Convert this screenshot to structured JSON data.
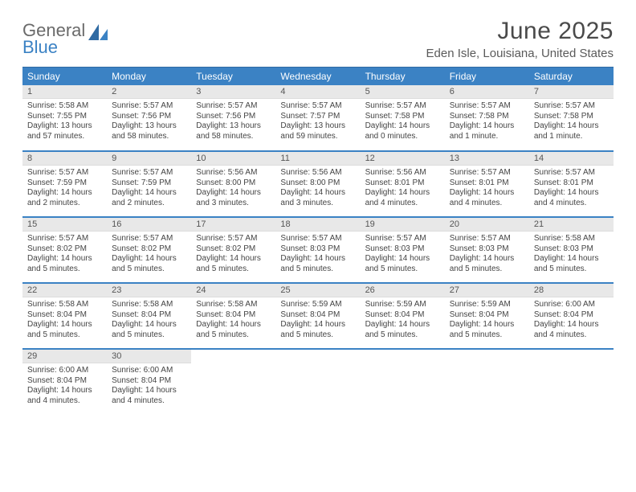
{
  "brand": {
    "line1": "General",
    "line2": "Blue"
  },
  "title": "June 2025",
  "location": "Eden Isle, Louisiana, United States",
  "colors": {
    "header_bg": "#3b82c4",
    "header_text": "#ffffff",
    "daynum_bg": "#e8e8e8",
    "row_divider": "#3b82c4",
    "body_text": "#444444",
    "title_text": "#4a4a4a"
  },
  "weekdays": [
    "Sunday",
    "Monday",
    "Tuesday",
    "Wednesday",
    "Thursday",
    "Friday",
    "Saturday"
  ],
  "days": [
    {
      "n": "1",
      "sunrise": "5:58 AM",
      "sunset": "7:55 PM",
      "daylight": "13 hours and 57 minutes."
    },
    {
      "n": "2",
      "sunrise": "5:57 AM",
      "sunset": "7:56 PM",
      "daylight": "13 hours and 58 minutes."
    },
    {
      "n": "3",
      "sunrise": "5:57 AM",
      "sunset": "7:56 PM",
      "daylight": "13 hours and 58 minutes."
    },
    {
      "n": "4",
      "sunrise": "5:57 AM",
      "sunset": "7:57 PM",
      "daylight": "13 hours and 59 minutes."
    },
    {
      "n": "5",
      "sunrise": "5:57 AM",
      "sunset": "7:58 PM",
      "daylight": "14 hours and 0 minutes."
    },
    {
      "n": "6",
      "sunrise": "5:57 AM",
      "sunset": "7:58 PM",
      "daylight": "14 hours and 1 minute."
    },
    {
      "n": "7",
      "sunrise": "5:57 AM",
      "sunset": "7:58 PM",
      "daylight": "14 hours and 1 minute."
    },
    {
      "n": "8",
      "sunrise": "5:57 AM",
      "sunset": "7:59 PM",
      "daylight": "14 hours and 2 minutes."
    },
    {
      "n": "9",
      "sunrise": "5:57 AM",
      "sunset": "7:59 PM",
      "daylight": "14 hours and 2 minutes."
    },
    {
      "n": "10",
      "sunrise": "5:56 AM",
      "sunset": "8:00 PM",
      "daylight": "14 hours and 3 minutes."
    },
    {
      "n": "11",
      "sunrise": "5:56 AM",
      "sunset": "8:00 PM",
      "daylight": "14 hours and 3 minutes."
    },
    {
      "n": "12",
      "sunrise": "5:56 AM",
      "sunset": "8:01 PM",
      "daylight": "14 hours and 4 minutes."
    },
    {
      "n": "13",
      "sunrise": "5:57 AM",
      "sunset": "8:01 PM",
      "daylight": "14 hours and 4 minutes."
    },
    {
      "n": "14",
      "sunrise": "5:57 AM",
      "sunset": "8:01 PM",
      "daylight": "14 hours and 4 minutes."
    },
    {
      "n": "15",
      "sunrise": "5:57 AM",
      "sunset": "8:02 PM",
      "daylight": "14 hours and 5 minutes."
    },
    {
      "n": "16",
      "sunrise": "5:57 AM",
      "sunset": "8:02 PM",
      "daylight": "14 hours and 5 minutes."
    },
    {
      "n": "17",
      "sunrise": "5:57 AM",
      "sunset": "8:02 PM",
      "daylight": "14 hours and 5 minutes."
    },
    {
      "n": "18",
      "sunrise": "5:57 AM",
      "sunset": "8:03 PM",
      "daylight": "14 hours and 5 minutes."
    },
    {
      "n": "19",
      "sunrise": "5:57 AM",
      "sunset": "8:03 PM",
      "daylight": "14 hours and 5 minutes."
    },
    {
      "n": "20",
      "sunrise": "5:57 AM",
      "sunset": "8:03 PM",
      "daylight": "14 hours and 5 minutes."
    },
    {
      "n": "21",
      "sunrise": "5:58 AM",
      "sunset": "8:03 PM",
      "daylight": "14 hours and 5 minutes."
    },
    {
      "n": "22",
      "sunrise": "5:58 AM",
      "sunset": "8:04 PM",
      "daylight": "14 hours and 5 minutes."
    },
    {
      "n": "23",
      "sunrise": "5:58 AM",
      "sunset": "8:04 PM",
      "daylight": "14 hours and 5 minutes."
    },
    {
      "n": "24",
      "sunrise": "5:58 AM",
      "sunset": "8:04 PM",
      "daylight": "14 hours and 5 minutes."
    },
    {
      "n": "25",
      "sunrise": "5:59 AM",
      "sunset": "8:04 PM",
      "daylight": "14 hours and 5 minutes."
    },
    {
      "n": "26",
      "sunrise": "5:59 AM",
      "sunset": "8:04 PM",
      "daylight": "14 hours and 5 minutes."
    },
    {
      "n": "27",
      "sunrise": "5:59 AM",
      "sunset": "8:04 PM",
      "daylight": "14 hours and 5 minutes."
    },
    {
      "n": "28",
      "sunrise": "6:00 AM",
      "sunset": "8:04 PM",
      "daylight": "14 hours and 4 minutes."
    },
    {
      "n": "29",
      "sunrise": "6:00 AM",
      "sunset": "8:04 PM",
      "daylight": "14 hours and 4 minutes."
    },
    {
      "n": "30",
      "sunrise": "6:00 AM",
      "sunset": "8:04 PM",
      "daylight": "14 hours and 4 minutes."
    }
  ],
  "labels": {
    "sunrise": "Sunrise:",
    "sunset": "Sunset:",
    "daylight": "Daylight:"
  },
  "layout": {
    "columns": 7,
    "rows": 5,
    "start_weekday": 0
  }
}
